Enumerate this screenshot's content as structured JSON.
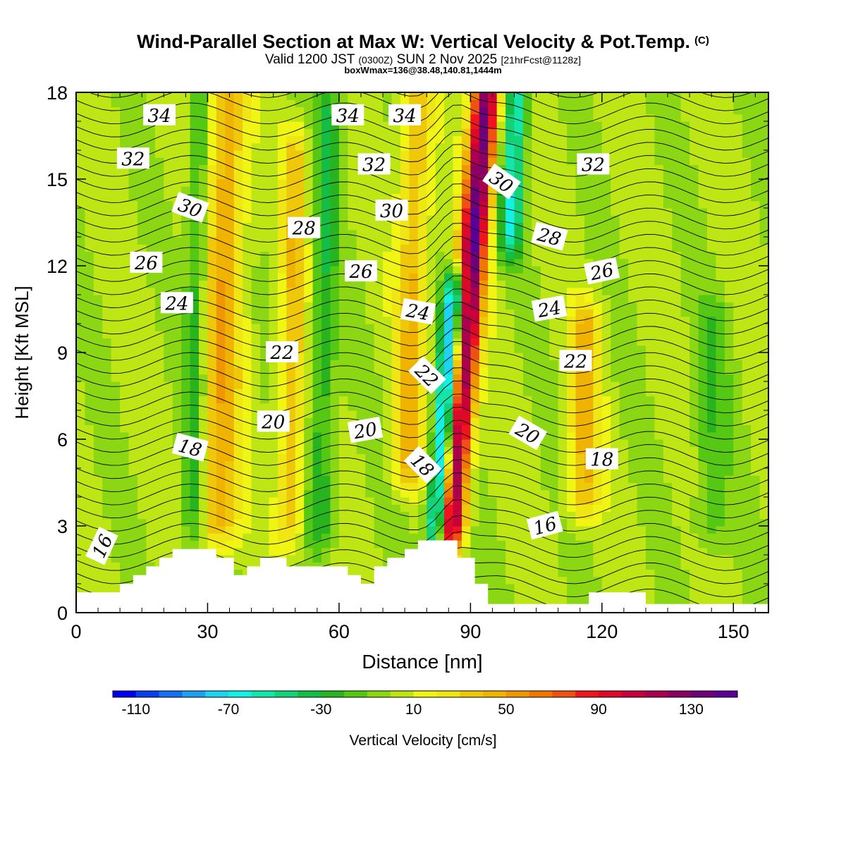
{
  "header": {
    "title": "Wind-Parallel Section at Max W: Vertical Velocity & Pot.Temp.",
    "copyright": "(C)",
    "valid_prefix": "Valid 1200 JST",
    "valid_utc": "(0300Z)",
    "valid_date": "SUN 2 Nov 2025",
    "forecast_info": "[21hrFcst@1128z]",
    "box_info": "boxWmax=136@38.48,140.81,1444m"
  },
  "colors": {
    "terrain": "#ffffff",
    "contour_line": "#000000"
  },
  "chart_data": {
    "type": "heatmap",
    "title": "Wind-Parallel Section at Max W: Vertical Velocity & Pot.Temp.",
    "xlabel": "Distance [nm]",
    "ylabel": "Height [Kft MSL]",
    "xlim": [
      0,
      158
    ],
    "ylim": [
      0,
      18
    ],
    "x_ticks": [
      0,
      30,
      60,
      90,
      120,
      150
    ],
    "y_ticks": [
      0,
      3,
      6,
      9,
      12,
      15,
      18
    ],
    "colorbar": {
      "label": "Vertical Velocity [cm/s]",
      "tick_labels": [
        -110,
        -70,
        -30,
        10,
        50,
        90,
        130
      ],
      "range": [
        -120,
        150
      ],
      "step": 10,
      "colors": [
        "#0000f0",
        "#0a3cf0",
        "#1470f0",
        "#1ea0f0",
        "#1ed2f0",
        "#14f0e6",
        "#14e6aa",
        "#14d278",
        "#14be46",
        "#28b41e",
        "#55c814",
        "#8cd714",
        "#bee614",
        "#f0f514",
        "#f0e614",
        "#f0c80a",
        "#f0b400",
        "#f09600",
        "#f07800",
        "#f05014",
        "#f0141e",
        "#dc0a28",
        "#c8003c",
        "#aa0050",
        "#8c0064",
        "#6e0078",
        "#5a0096"
      ]
    },
    "velocity_features": [
      {
        "kind": "updraft",
        "x_center": 33,
        "half_width": 4.5,
        "peak_cm_s": 45,
        "z_range": [
          3,
          18
        ],
        "tilt_nm_per_kft": 0.15
      },
      {
        "kind": "updraft",
        "x_center": 49,
        "half_width": 3,
        "peak_cm_s": 35,
        "z_range": [
          3,
          16
        ],
        "tilt_nm_per_kft": 0.12
      },
      {
        "kind": "updraft",
        "x_center": 76,
        "half_width": 3.5,
        "peak_cm_s": 40,
        "z_range": [
          5,
          18
        ],
        "tilt_nm_per_kft": 0.15
      },
      {
        "kind": "updraft",
        "x_center": 87,
        "half_width": 3,
        "peak_cm_s": 136,
        "z_range": [
          3,
          18
        ],
        "tilt_nm_per_kft": 0.55
      },
      {
        "kind": "downdraft",
        "x_center": 84,
        "half_width": 2.5,
        "peak_cm_s": -110,
        "z_range": [
          3,
          11
        ],
        "tilt_nm_per_kft": 0.5
      },
      {
        "kind": "downdraft",
        "x_center": 97,
        "half_width": 2.5,
        "peak_cm_s": -60,
        "z_range": [
          13,
          18
        ],
        "tilt_nm_per_kft": 0.3
      },
      {
        "kind": "updraft",
        "x_center": 116,
        "half_width": 3.5,
        "peak_cm_s": 40,
        "z_range": [
          4,
          10
        ],
        "tilt_nm_per_kft": 0.1
      },
      {
        "kind": "sinking",
        "x_center": 27,
        "half_width": 2.5,
        "peak_cm_s": -30,
        "z_range": [
          3,
          18
        ],
        "tilt_nm_per_kft": 0.1
      },
      {
        "kind": "sinking",
        "x_center": 56,
        "half_width": 3,
        "peak_cm_s": -30,
        "z_range": [
          3,
          18
        ],
        "tilt_nm_per_kft": 0.12
      },
      {
        "kind": "sinking",
        "x_center": 145,
        "half_width": 4,
        "peak_cm_s": -20,
        "z_range": [
          3,
          10
        ],
        "tilt_nm_per_kft": 0.05
      }
    ],
    "theta_contours": {
      "units": "C",
      "interval": 0.5,
      "labels": [
        {
          "value": 34,
          "x": 19,
          "y": 17.2,
          "angle": 0
        },
        {
          "value": 34,
          "x": 62,
          "y": 17.2,
          "angle": 0
        },
        {
          "value": 34,
          "x": 75,
          "y": 17.2,
          "angle": 0
        },
        {
          "value": 32,
          "x": 13,
          "y": 15.7,
          "angle": 0
        },
        {
          "value": 32,
          "x": 68,
          "y": 15.5,
          "angle": 0
        },
        {
          "value": 32,
          "x": 118,
          "y": 15.5,
          "angle": 0
        },
        {
          "value": 30,
          "x": 26,
          "y": 14.0,
          "angle": 20
        },
        {
          "value": 30,
          "x": 72,
          "y": 13.9,
          "angle": 0
        },
        {
          "value": 30,
          "x": 97,
          "y": 14.9,
          "angle": 35
        },
        {
          "value": 28,
          "x": 52,
          "y": 13.3,
          "angle": 0
        },
        {
          "value": 28,
          "x": 108,
          "y": 13.0,
          "angle": 15
        },
        {
          "value": 26,
          "x": 16,
          "y": 12.1,
          "angle": 0
        },
        {
          "value": 26,
          "x": 65,
          "y": 11.8,
          "angle": 0
        },
        {
          "value": 26,
          "x": 120,
          "y": 11.8,
          "angle": -12
        },
        {
          "value": 24,
          "x": 23,
          "y": 10.7,
          "angle": 0
        },
        {
          "value": 24,
          "x": 78,
          "y": 10.4,
          "angle": 10
        },
        {
          "value": 24,
          "x": 108,
          "y": 10.5,
          "angle": -10
        },
        {
          "value": 22,
          "x": 47,
          "y": 9.0,
          "angle": 0
        },
        {
          "value": 22,
          "x": 114,
          "y": 8.7,
          "angle": 0
        },
        {
          "value": 22,
          "x": 80,
          "y": 8.2,
          "angle": 45
        },
        {
          "value": 20,
          "x": 45,
          "y": 6.6,
          "angle": 0
        },
        {
          "value": 20,
          "x": 66,
          "y": 6.3,
          "angle": -10
        },
        {
          "value": 20,
          "x": 103,
          "y": 6.2,
          "angle": 30
        },
        {
          "value": 18,
          "x": 26,
          "y": 5.7,
          "angle": 15
        },
        {
          "value": 18,
          "x": 79,
          "y": 5.1,
          "angle": 45
        },
        {
          "value": 18,
          "x": 120,
          "y": 5.3,
          "angle": 0
        },
        {
          "value": 16,
          "x": 6,
          "y": 2.3,
          "angle": -65
        },
        {
          "value": 16,
          "x": 107,
          "y": 3.0,
          "angle": -15
        }
      ]
    },
    "terrain_kft": [
      [
        0,
        0.7
      ],
      [
        10,
        0.7
      ],
      [
        10,
        1.0
      ],
      [
        13,
        1.0
      ],
      [
        13,
        1.3
      ],
      [
        16,
        1.3
      ],
      [
        16,
        1.6
      ],
      [
        19,
        1.6
      ],
      [
        19,
        1.9
      ],
      [
        22,
        1.9
      ],
      [
        22,
        2.2
      ],
      [
        32,
        2.2
      ],
      [
        32,
        1.9
      ],
      [
        36,
        1.9
      ],
      [
        36,
        1.3
      ],
      [
        39,
        1.3
      ],
      [
        39,
        1.6
      ],
      [
        42,
        1.6
      ],
      [
        42,
        1.9
      ],
      [
        48,
        1.9
      ],
      [
        48,
        1.6
      ],
      [
        62,
        1.6
      ],
      [
        62,
        1.3
      ],
      [
        65,
        1.3
      ],
      [
        65,
        1.0
      ],
      [
        68,
        1.0
      ],
      [
        68,
        1.6
      ],
      [
        71,
        1.6
      ],
      [
        71,
        1.9
      ],
      [
        75,
        1.9
      ],
      [
        75,
        2.2
      ],
      [
        78,
        2.2
      ],
      [
        78,
        2.5
      ],
      [
        87,
        2.5
      ],
      [
        87,
        1.9
      ],
      [
        91,
        1.9
      ],
      [
        91,
        1.0
      ],
      [
        94,
        1.0
      ],
      [
        94,
        0.3
      ],
      [
        117,
        0.3
      ],
      [
        117,
        0.7
      ],
      [
        130,
        0.7
      ],
      [
        130,
        0.3
      ],
      [
        158,
        0.3
      ]
    ]
  }
}
